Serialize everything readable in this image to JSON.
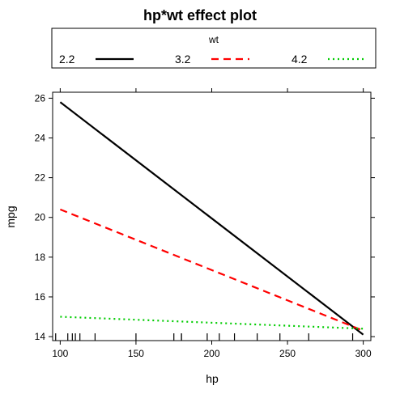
{
  "chart_data": {
    "type": "line",
    "title": "hp*wt effect plot",
    "xlabel": "hp",
    "ylabel": "mpg",
    "xlim": [
      95,
      305
    ],
    "ylim": [
      13.8,
      26.3
    ],
    "x_ticks": [
      "100",
      "150",
      "200",
      "250",
      "300"
    ],
    "y_ticks": [
      "14",
      "16",
      "18",
      "20",
      "22",
      "24",
      "26"
    ],
    "legend": {
      "title": "wt",
      "position": "top"
    },
    "series": [
      {
        "name": "2.2",
        "color": "#000000",
        "dash": "solid",
        "x": [
          100,
          300
        ],
        "y": [
          25.8,
          14.1
        ]
      },
      {
        "name": "3.2",
        "color": "#ff0000",
        "dash": "dashed",
        "x": [
          100,
          300
        ],
        "y": [
          20.4,
          14.3
        ]
      },
      {
        "name": "4.2",
        "color": "#00cc00",
        "dash": "dotted",
        "x": [
          100,
          300
        ],
        "y": [
          15.0,
          14.4
        ]
      }
    ],
    "rug_x": [
      97,
      105,
      108,
      110,
      113,
      123,
      150,
      175,
      180,
      180,
      197,
      205,
      215,
      230,
      245,
      264,
      293
    ]
  }
}
